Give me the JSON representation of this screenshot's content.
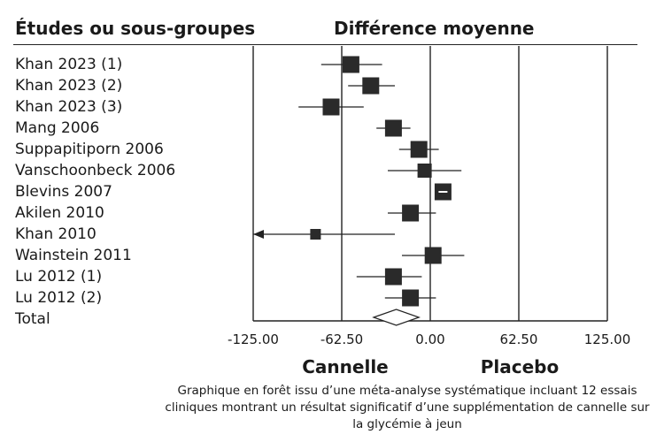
{
  "header": {
    "left": "Études ou sous-groupes",
    "right": "Différence moyenne"
  },
  "chart_data": {
    "type": "forest",
    "xlabel": "",
    "xlim": [
      -125,
      125
    ],
    "ticks": [
      "-125.00",
      "-62.50",
      "0.00",
      "62.50",
      "125.00"
    ],
    "tick_values": [
      -125,
      -62.5,
      0,
      62.5,
      125
    ],
    "side_labels": {
      "left": "Cannelle",
      "right": "Placebo"
    },
    "studies": [
      {
        "name": "Khan 2023 (1)",
        "mean": -56,
        "lo": -77,
        "hi": -34,
        "weight": "large"
      },
      {
        "name": "Khan 2023 (2)",
        "mean": -42,
        "lo": -58,
        "hi": -25,
        "weight": "large"
      },
      {
        "name": "Khan 2023 (3)",
        "mean": -70,
        "lo": -93,
        "hi": -47,
        "weight": "large"
      },
      {
        "name": "Mang 2006",
        "mean": -26,
        "lo": -38,
        "hi": -14,
        "weight": "large"
      },
      {
        "name": "Suppapitiporn 2006",
        "mean": -8,
        "lo": -22,
        "hi": 6,
        "weight": "large"
      },
      {
        "name": "Vanschoonbeck 2006",
        "mean": -4,
        "lo": -30,
        "hi": 22,
        "weight": "medium"
      },
      {
        "name": "Blevins 2007",
        "mean": 9,
        "lo": 4,
        "hi": 14,
        "weight": "large",
        "highlight": true
      },
      {
        "name": "Akilen 2010",
        "mean": -14,
        "lo": -30,
        "hi": 4,
        "weight": "large"
      },
      {
        "name": "Khan 2010",
        "mean": -81,
        "lo": -125,
        "hi": -25,
        "weight": "small",
        "arrow_left": true
      },
      {
        "name": "Wainstein 2011",
        "mean": 2,
        "lo": -20,
        "hi": 24,
        "weight": "large"
      },
      {
        "name": "Lu 2012 (1)",
        "mean": -26,
        "lo": -52,
        "hi": -6,
        "weight": "large"
      },
      {
        "name": "Lu 2012 (2)",
        "mean": -14,
        "lo": -32,
        "hi": 4,
        "weight": "large"
      }
    ],
    "total": {
      "name": "Total",
      "mean": -24,
      "lo": -40,
      "hi": -8
    }
  },
  "caption": "Graphique en forêt issu d’une méta-analyse systématique incluant 12 essais cliniques montrant un résultat significatif d’une supplémentation de cannelle sur la glycémie à jeun"
}
